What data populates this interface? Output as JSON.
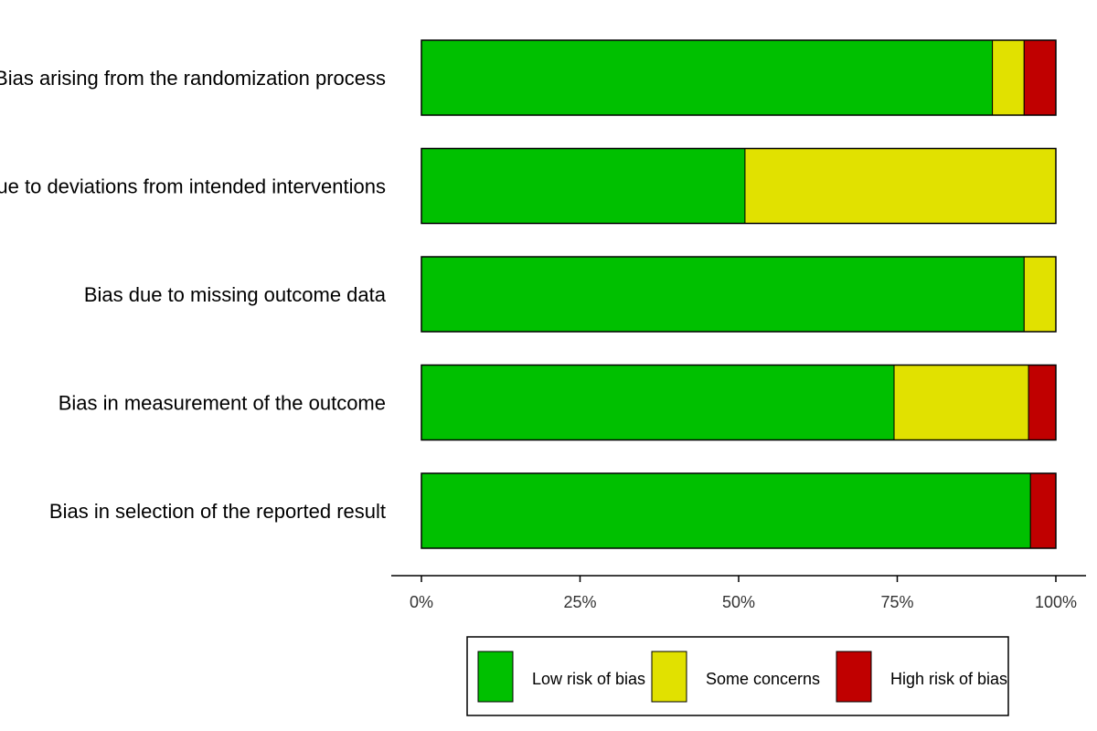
{
  "chart_data": {
    "type": "bar",
    "orientation": "horizontal",
    "stacked": true,
    "categories": [
      "Bias arising from the randomization process",
      "Bias due to deviations from intended interventions",
      "Bias due to missing outcome data",
      "Bias in measurement of the outcome",
      "Bias in selection of the reported result"
    ],
    "series": [
      {
        "name": "Low risk of bias",
        "color": "#00c000",
        "values": [
          90,
          51,
          95,
          74.5,
          96
        ]
      },
      {
        "name": "Some concerns",
        "color": "#e1e100",
        "values": [
          5,
          49,
          5,
          21.2,
          0
        ]
      },
      {
        "name": "High risk of bias",
        "color": "#c00000",
        "values": [
          5,
          0,
          0,
          4.3,
          4
        ]
      }
    ],
    "xlim": [
      0,
      100
    ],
    "xticks": [
      "0%",
      "25%",
      "50%",
      "75%",
      "100%"
    ],
    "title": "",
    "xlabel": "",
    "ylabel": "",
    "grid": false,
    "legend_position": "bottom"
  }
}
